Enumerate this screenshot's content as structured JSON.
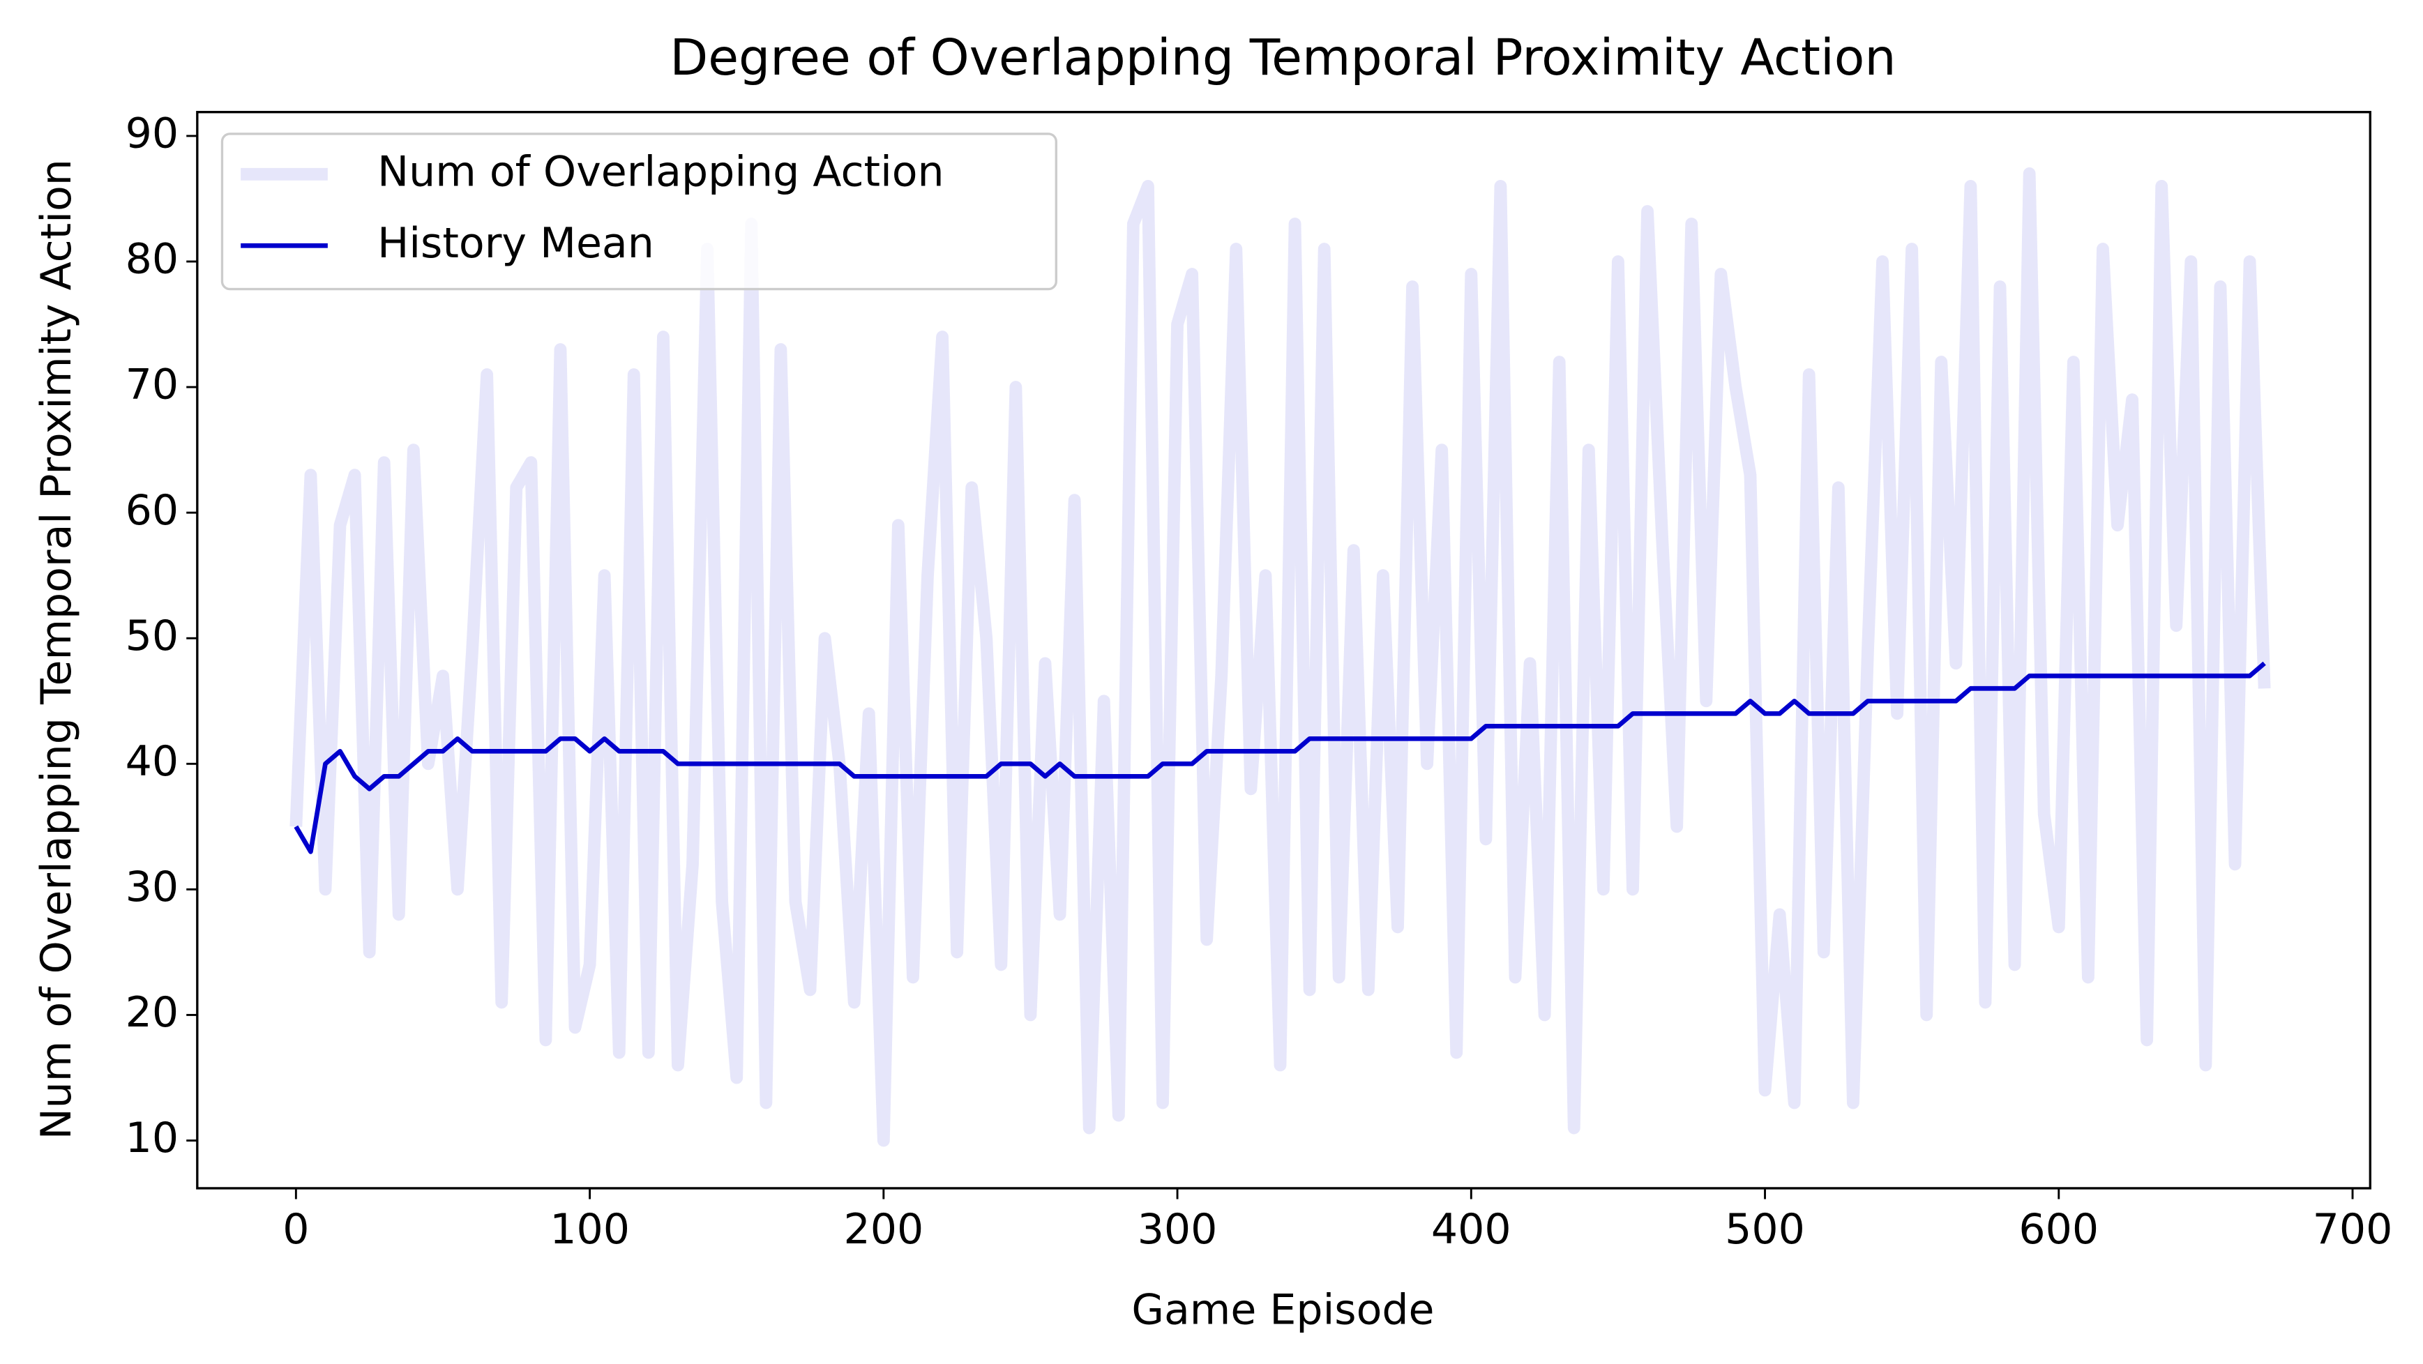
{
  "chart_data": {
    "type": "line",
    "title": "Degree of Overlapping Temporal Proximity Action",
    "xlabel": "Game Episode",
    "ylabel": "Num of Overlapping Temporal Proximity Action",
    "x": [
      0,
      5,
      10,
      15,
      20,
      25,
      30,
      35,
      40,
      45,
      50,
      55,
      60,
      65,
      70,
      75,
      80,
      85,
      90,
      95,
      100,
      105,
      110,
      115,
      120,
      125,
      130,
      135,
      140,
      145,
      150,
      155,
      160,
      165,
      170,
      175,
      180,
      185,
      190,
      195,
      200,
      205,
      210,
      215,
      220,
      225,
      230,
      235,
      240,
      245,
      250,
      255,
      260,
      265,
      270,
      275,
      280,
      285,
      290,
      295,
      300,
      305,
      310,
      315,
      320,
      325,
      330,
      335,
      340,
      345,
      350,
      355,
      360,
      365,
      370,
      375,
      380,
      385,
      390,
      395,
      400,
      405,
      410,
      415,
      420,
      425,
      430,
      435,
      440,
      445,
      450,
      455,
      460,
      465,
      470,
      475,
      480,
      485,
      490,
      495,
      500,
      505,
      510,
      515,
      520,
      525,
      530,
      535,
      540,
      545,
      550,
      555,
      560,
      565,
      570,
      575,
      580,
      585,
      590,
      595,
      600,
      605,
      610,
      615,
      620,
      625,
      630,
      635,
      640,
      645,
      650,
      655,
      660,
      665,
      670
    ],
    "series": [
      {
        "name": "Num of Overlapping Action",
        "color": "#e6e6fa",
        "width": 8,
        "values": [
          35,
          63,
          30,
          59,
          63,
          25,
          64,
          28,
          65,
          40,
          47,
          30,
          49,
          71,
          21,
          62,
          64,
          18,
          73,
          19,
          24,
          55,
          17,
          71,
          17,
          74,
          16,
          32,
          81,
          29,
          15,
          83,
          13,
          73,
          29,
          22,
          50,
          40,
          21,
          44,
          10,
          59,
          23,
          55,
          74,
          25,
          62,
          50,
          24,
          70,
          20,
          48,
          28,
          61,
          11,
          45,
          12,
          83,
          86,
          13,
          75,
          79,
          26,
          47,
          81,
          38,
          55,
          16,
          83,
          22,
          81,
          23,
          57,
          22,
          55,
          27,
          78,
          40,
          65,
          17,
          79,
          34,
          86,
          23,
          48,
          20,
          72,
          11,
          65,
          30,
          80,
          30,
          84,
          58,
          35,
          83,
          45,
          79,
          70,
          63,
          14,
          28,
          13,
          71,
          25,
          62,
          13,
          49,
          80,
          44,
          81,
          20,
          72,
          48,
          86,
          21,
          78,
          24,
          87,
          36,
          27,
          72,
          23,
          81,
          59,
          69,
          18,
          86,
          51,
          80,
          16,
          78,
          32,
          80,
          46
        ]
      },
      {
        "name": "History Mean",
        "color": "#0000cd",
        "width": 3,
        "values": [
          35,
          33,
          40,
          41,
          39,
          38,
          39,
          39,
          40,
          41,
          41,
          42,
          41,
          41,
          41,
          41,
          41,
          41,
          42,
          42,
          41,
          42,
          41,
          41,
          41,
          41,
          40,
          40,
          40,
          40,
          40,
          40,
          40,
          40,
          40,
          40,
          40,
          40,
          39,
          39,
          39,
          39,
          39,
          39,
          39,
          39,
          39,
          39,
          40,
          40,
          40,
          39,
          40,
          39,
          39,
          39,
          39,
          39,
          39,
          40,
          40,
          40,
          41,
          41,
          41,
          41,
          41,
          41,
          41,
          42,
          42,
          42,
          42,
          42,
          42,
          42,
          42,
          42,
          42,
          42,
          42,
          43,
          43,
          43,
          43,
          43,
          43,
          43,
          43,
          43,
          43,
          44,
          44,
          44,
          44,
          44,
          44,
          44,
          44,
          45,
          44,
          44,
          45,
          44,
          44,
          44,
          44,
          45,
          45,
          45,
          45,
          45,
          45,
          45,
          46,
          46,
          46,
          46,
          47,
          47,
          47,
          47,
          47,
          47,
          47,
          47,
          47,
          47,
          47,
          47,
          47,
          47,
          47,
          47,
          48
        ]
      }
    ],
    "xlim": [
      -33.6,
      706
    ],
    "ylim": [
      6.2,
      91.9
    ],
    "xticks": [
      0,
      100,
      200,
      300,
      400,
      500,
      600,
      700
    ],
    "yticks": [
      10,
      20,
      30,
      40,
      50,
      60,
      70,
      80,
      90
    ],
    "legend": "upper left"
  }
}
